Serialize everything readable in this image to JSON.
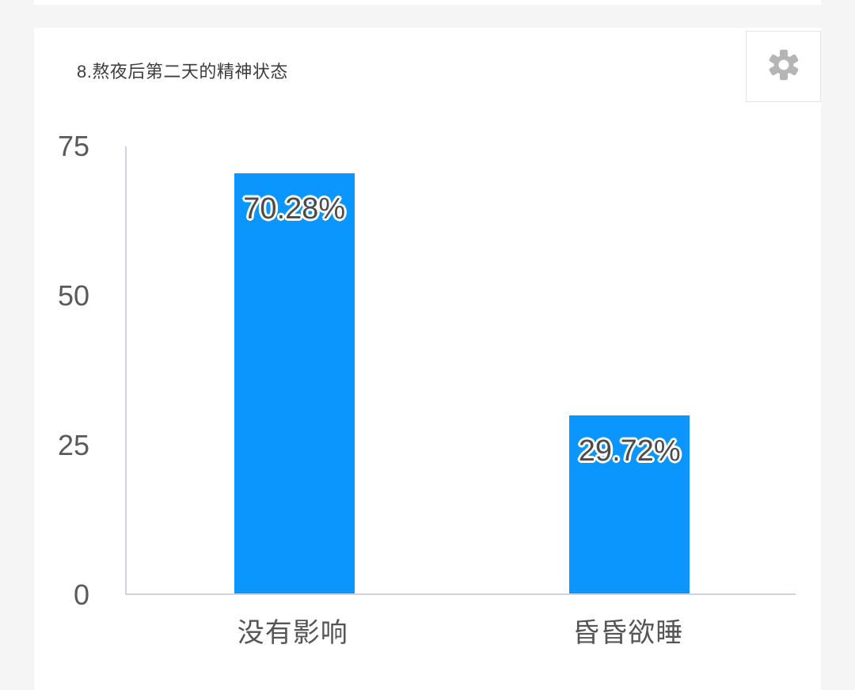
{
  "page": {
    "background_color": "#f5f5f6",
    "card_color": "#ffffff"
  },
  "question": {
    "title": "8.熬夜后第二天的精神状态"
  },
  "toolbar": {
    "settings_icon": "gear-icon",
    "icon_color": "#b5b5b5"
  },
  "chart_data": {
    "type": "bar",
    "title": "8.熬夜后第二天的精神状态",
    "categories": [
      "没有影响",
      "昏昏欲睡"
    ],
    "values": [
      70.28,
      29.72
    ],
    "value_labels": [
      "70.28%",
      "29.72%"
    ],
    "xlabel": "",
    "ylabel": "",
    "ylim": [
      0,
      75
    ],
    "yticks": [
      75,
      50,
      25,
      0
    ],
    "bar_color": "#0a96fc",
    "axis_line_color": "#ccd4e0",
    "grid": false,
    "legend_position": "none"
  }
}
